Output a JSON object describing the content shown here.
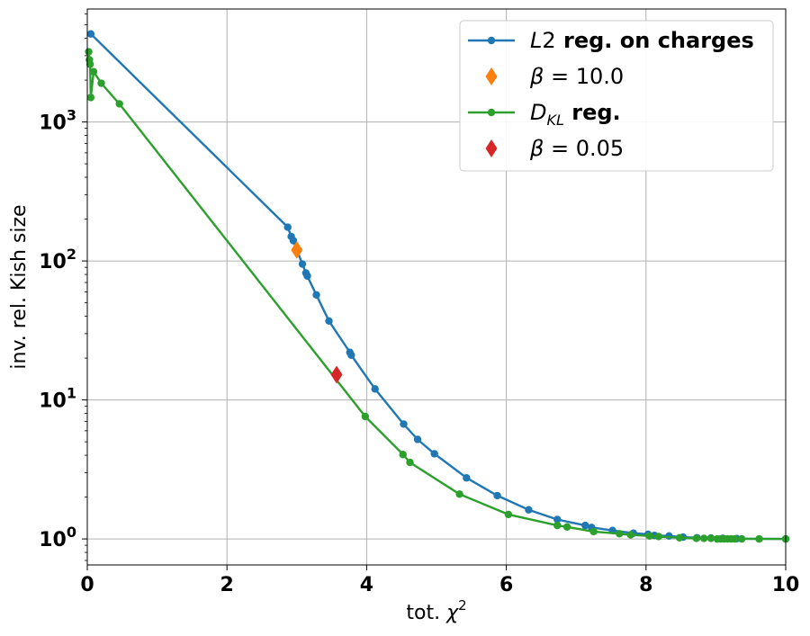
{
  "chart_data": {
    "type": "line",
    "xlabel": "tot. χ2",
    "ylabel": "inv. rel. Kish size",
    "xlim": [
      0,
      10
    ],
    "ylim": [
      0.65,
      6500
    ],
    "yscale": "log",
    "grid": true,
    "legend_position": "top-right",
    "x_ticks": [
      {
        "value": 0,
        "label": "0"
      },
      {
        "value": 2,
        "label": "2"
      },
      {
        "value": 4,
        "label": "4"
      },
      {
        "value": 6,
        "label": "6"
      },
      {
        "value": 8,
        "label": "8"
      },
      {
        "value": 10,
        "label": "10"
      }
    ],
    "y_ticks": [
      {
        "value": 1,
        "base": "10",
        "exp": "0"
      },
      {
        "value": 10,
        "base": "10",
        "exp": "1"
      },
      {
        "value": 100,
        "base": "10",
        "exp": "2"
      },
      {
        "value": 1000,
        "base": "10",
        "exp": "3"
      }
    ],
    "series": [
      {
        "name": "L2 reg. on charges",
        "color": "#1f77b4",
        "marker": "circle",
        "points": [
          [
            0.05,
            4300
          ],
          [
            2.87,
            175
          ],
          [
            2.92,
            150
          ],
          [
            2.95,
            140
          ],
          [
            3.0,
            120
          ],
          [
            3.08,
            95
          ],
          [
            3.13,
            82
          ],
          [
            3.15,
            78
          ],
          [
            3.28,
            57
          ],
          [
            3.46,
            37
          ],
          [
            3.76,
            22
          ],
          [
            3.78,
            21
          ],
          [
            4.12,
            12
          ],
          [
            4.53,
            6.7
          ],
          [
            4.73,
            5.2
          ],
          [
            4.97,
            4.1
          ],
          [
            5.43,
            2.75
          ],
          [
            5.87,
            2.05
          ],
          [
            6.32,
            1.62
          ],
          [
            6.73,
            1.38
          ],
          [
            7.13,
            1.25
          ],
          [
            7.22,
            1.21
          ],
          [
            7.52,
            1.15
          ],
          [
            7.82,
            1.1
          ],
          [
            8.03,
            1.08
          ],
          [
            8.12,
            1.06
          ],
          [
            8.33,
            1.05
          ],
          [
            8.53,
            1.03
          ],
          [
            8.73,
            1.02
          ],
          [
            8.93,
            1.015
          ],
          [
            9.1,
            1.01
          ],
          [
            9.3,
            1.005
          ],
          [
            10.0,
            1.0
          ]
        ]
      },
      {
        "name": "β = 10.0",
        "color": "#ff7f0e",
        "marker": "diamond",
        "points": [
          [
            3.0,
            120
          ]
        ]
      },
      {
        "name": "D_KL reg.",
        "color": "#2ca02c",
        "marker": "circle",
        "points": [
          [
            0.02,
            3200
          ],
          [
            0.03,
            2800
          ],
          [
            0.04,
            2600
          ],
          [
            0.05,
            1500
          ],
          [
            0.09,
            2300
          ],
          [
            0.2,
            1900
          ],
          [
            0.46,
            1350
          ],
          [
            3.98,
            7.6
          ],
          [
            4.52,
            4.05
          ],
          [
            4.62,
            3.55
          ],
          [
            5.33,
            2.1
          ],
          [
            6.03,
            1.5
          ],
          [
            6.73,
            1.25
          ],
          [
            6.87,
            1.22
          ],
          [
            7.25,
            1.13
          ],
          [
            7.62,
            1.09
          ],
          [
            7.78,
            1.07
          ],
          [
            8.05,
            1.05
          ],
          [
            8.18,
            1.04
          ],
          [
            8.48,
            1.02
          ],
          [
            8.72,
            1.01
          ],
          [
            8.83,
            1.01
          ],
          [
            8.93,
            1.01
          ],
          [
            9.02,
            1.0
          ],
          [
            9.07,
            1.0
          ],
          [
            9.12,
            1.0
          ],
          [
            9.17,
            1.0
          ],
          [
            9.22,
            1.0
          ],
          [
            9.27,
            1.0
          ],
          [
            9.37,
            1.0
          ],
          [
            9.62,
            1.0
          ],
          [
            10.0,
            1.0
          ]
        ]
      },
      {
        "name": "β = 0.05",
        "color": "#d62728",
        "marker": "diamond",
        "points": [
          [
            3.57,
            15.2
          ]
        ]
      }
    ],
    "legend": [
      {
        "type": "line",
        "color": "#1f77b4",
        "italic": "L",
        "rest": "2",
        "bold": " reg. on charges"
      },
      {
        "type": "diamond",
        "color": "#ff7f0e",
        "italic": "β",
        "rest": " = 10.0",
        "bold": ""
      },
      {
        "type": "line",
        "color": "#2ca02c",
        "italic": "D",
        "sub": "KL",
        "bold": " reg."
      },
      {
        "type": "diamond",
        "color": "#d62728",
        "italic": "β",
        "rest": " = 0.05",
        "bold": ""
      }
    ]
  }
}
